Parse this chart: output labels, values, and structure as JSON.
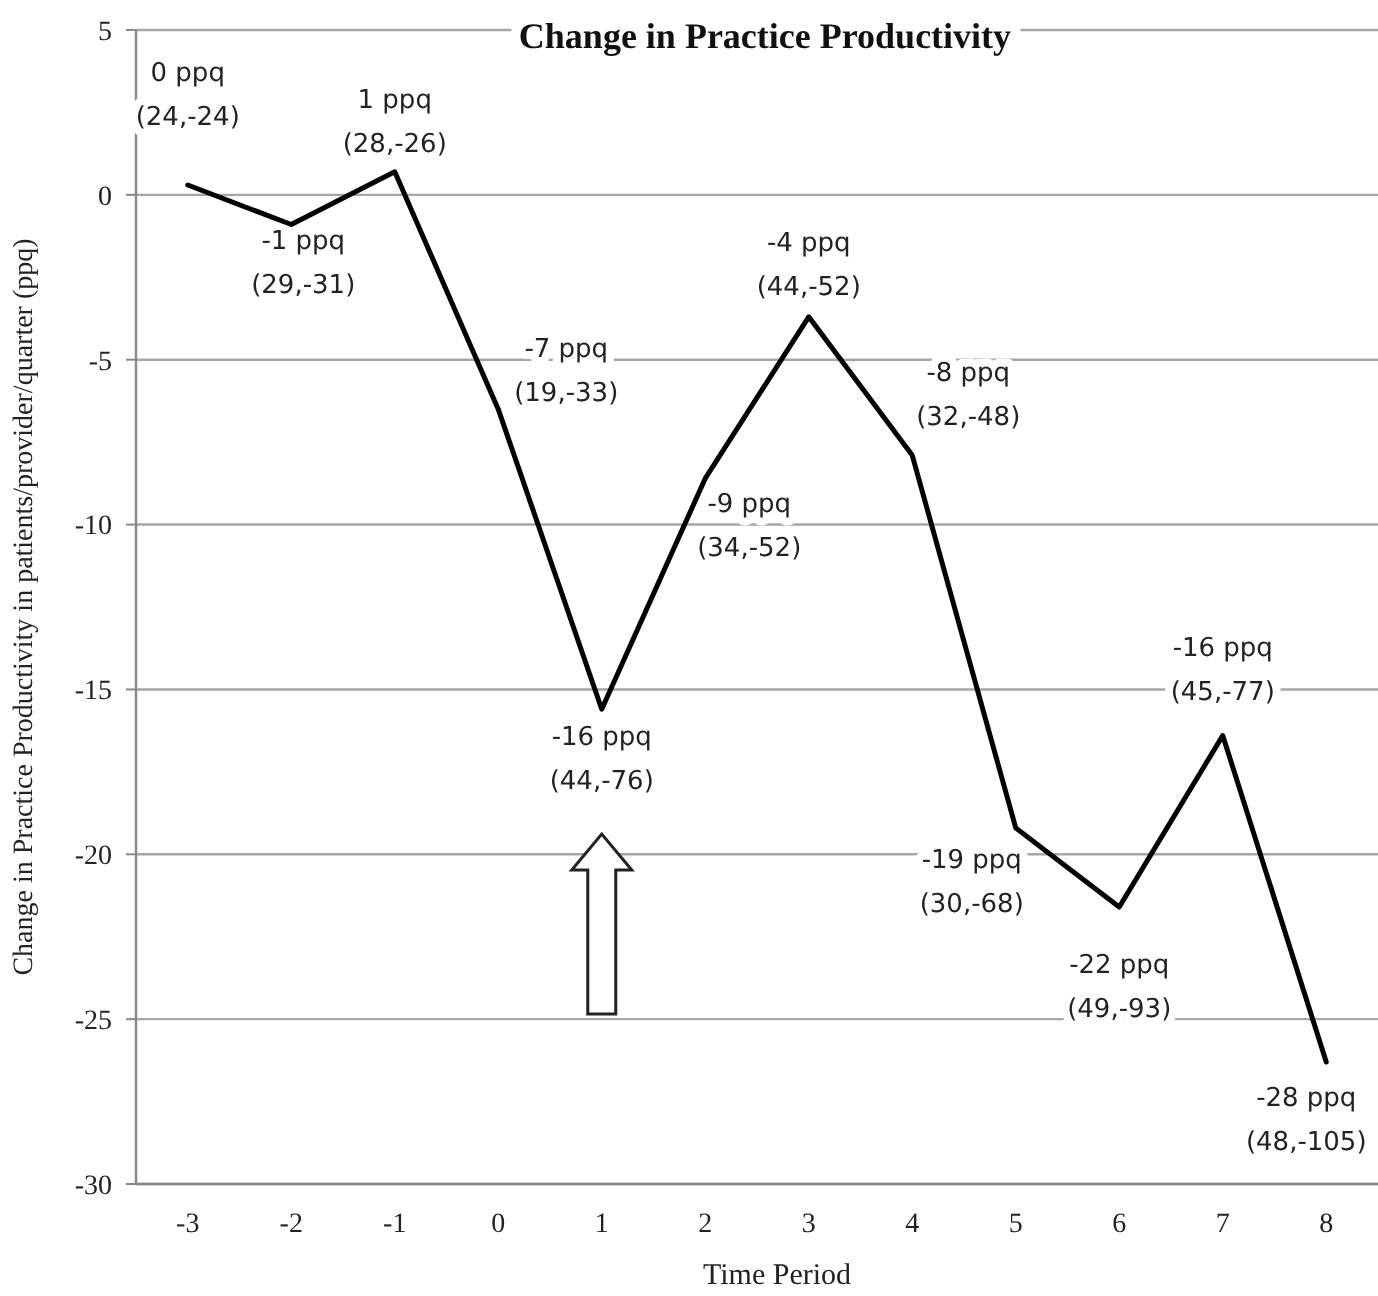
{
  "chart_data": {
    "type": "line",
    "title": "Change in Practice Productivity",
    "xlabel": "Time Period",
    "ylabel": "Change in Practice Productivity in patients/provider/quarter (ppq)",
    "categories": [
      "-3",
      "-2",
      "-1",
      "0",
      "1",
      "2",
      "3",
      "4",
      "5",
      "6",
      "7",
      "8"
    ],
    "series": [
      {
        "color": "#000000",
        "values": [
          0.3,
          -0.9,
          0.7,
          -6.5,
          -15.6,
          -8.6,
          -3.7,
          -7.9,
          -19.2,
          -21.6,
          -16.4,
          -26.3
        ]
      }
    ],
    "annotations": [
      {
        "text": "0 ppq\n(24,-24)",
        "x": "-3",
        "y": 0.3
      },
      {
        "text": "-1 ppq\n(29,-31)",
        "x": "-2",
        "y": -0.9
      },
      {
        "text": "1 ppq\n(28,-26)",
        "x": "-1",
        "y": 0.7
      },
      {
        "text": "-7 ppq\n(19,-33)",
        "x": "0",
        "y": -6.5
      },
      {
        "text": "-16 ppq\n(44,-76)",
        "x": "1",
        "y": -15.6
      },
      {
        "text": "-9 ppq\n(34,-52)",
        "x": "2",
        "y": -8.6
      },
      {
        "text": "-4 ppq\n(44,-52)",
        "x": "3",
        "y": -3.7
      },
      {
        "text": "-8 ppq\n(32,-48)",
        "x": "4",
        "y": -7.9
      },
      {
        "text": "-19 ppq\n(30,-68)",
        "x": "5",
        "y": -19.2
      },
      {
        "text": "-22 ppq\n(49,-93)",
        "x": "6",
        "y": -21.6
      },
      {
        "text": "-16 ppq\n(45,-77)",
        "x": "7",
        "y": -16.4
      },
      {
        "text": "-28 ppq\n(48,-105)",
        "x": "8",
        "y": -26.3
      }
    ],
    "ylim": [
      -30,
      5
    ],
    "yticks": [
      -30,
      -25,
      -20,
      -15,
      -10,
      -5,
      0,
      5
    ],
    "grid": "y"
  }
}
